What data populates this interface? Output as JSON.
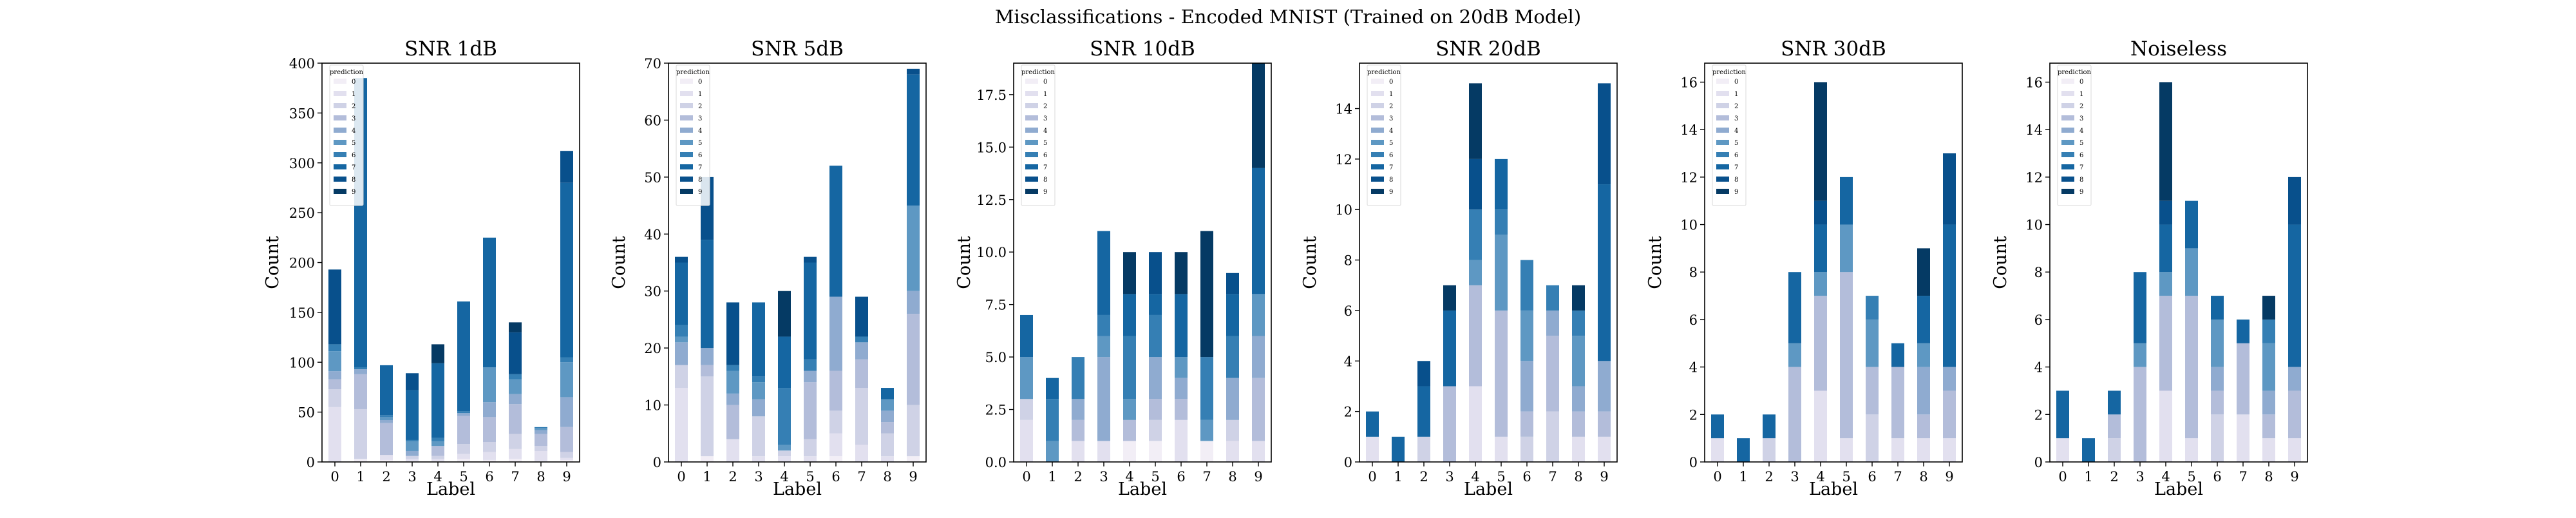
{
  "suptitle": "Misclassifications - Encoded MNIST (Trained on 20dB Model)",
  "legend_title": "prediction",
  "legend_labels": [
    "0",
    "1",
    "2",
    "3",
    "4",
    "5",
    "6",
    "7",
    "8",
    "9"
  ],
  "colors": [
    "#f2eef6",
    "#e2e0ef",
    "#cfd2e6",
    "#b3bdda",
    "#8fabd0",
    "#5e98c3",
    "#357fb4",
    "#1566a2",
    "#08508c",
    "#053a64"
  ],
  "chart_data": [
    {
      "type": "bar",
      "stacked": true,
      "title": "SNR 1dB",
      "xlabel": "Label",
      "ylabel": "Count",
      "categories": [
        "0",
        "1",
        "2",
        "3",
        "4",
        "5",
        "6",
        "7",
        "8",
        "9"
      ],
      "ylim": [
        0,
        400
      ],
      "yticks": [
        "0",
        "50",
        "100",
        "150",
        "200",
        "250",
        "300",
        "350",
        "400"
      ],
      "series": [
        {
          "name": "0",
          "values": [
            0,
            3,
            2,
            1,
            1,
            3,
            2,
            3,
            1,
            2
          ]
        },
        {
          "name": "1",
          "values": [
            55,
            0,
            5,
            2,
            2,
            5,
            8,
            10,
            10,
            2
          ]
        },
        {
          "name": "2",
          "values": [
            18,
            50,
            0,
            3,
            3,
            10,
            10,
            15,
            5,
            6
          ]
        },
        {
          "name": "3",
          "values": [
            10,
            35,
            32,
            0,
            10,
            28,
            25,
            30,
            12,
            25
          ]
        },
        {
          "name": "4",
          "values": [
            8,
            5,
            3,
            5,
            0,
            3,
            15,
            10,
            4,
            30
          ]
        },
        {
          "name": "5",
          "values": [
            20,
            0,
            3,
            10,
            5,
            0,
            35,
            15,
            2,
            35
          ]
        },
        {
          "name": "6",
          "values": [
            7,
            2,
            2,
            1,
            3,
            2,
            0,
            5,
            1,
            5
          ]
        },
        {
          "name": "7",
          "values": [
            0,
            290,
            50,
            50,
            75,
            110,
            130,
            0,
            0,
            175
          ]
        },
        {
          "name": "8",
          "values": [
            75,
            0,
            0,
            17,
            0,
            0,
            0,
            42,
            0,
            32
          ]
        },
        {
          "name": "9",
          "values": [
            0,
            0,
            0,
            0,
            19,
            0,
            0,
            10,
            0,
            0
          ]
        }
      ]
    },
    {
      "type": "bar",
      "stacked": true,
      "title": "SNR 5dB",
      "xlabel": "Label",
      "ylabel": "Count",
      "categories": [
        "0",
        "1",
        "2",
        "3",
        "4",
        "5",
        "6",
        "7",
        "8",
        "9"
      ],
      "ylim": [
        0,
        70
      ],
      "yticks": [
        "0",
        "10",
        "20",
        "30",
        "40",
        "50",
        "60",
        "70"
      ],
      "series": [
        {
          "name": "0",
          "values": [
            0,
            1,
            0,
            0,
            0,
            0,
            1,
            0,
            0,
            1
          ]
        },
        {
          "name": "1",
          "values": [
            13,
            0,
            4,
            1,
            1,
            1,
            4,
            3,
            1,
            0
          ]
        },
        {
          "name": "2",
          "values": [
            4,
            14,
            0,
            7,
            1,
            3,
            4,
            10,
            4,
            9
          ]
        },
        {
          "name": "3",
          "values": [
            0,
            2,
            6,
            0,
            0,
            10,
            7,
            5,
            2,
            16
          ]
        },
        {
          "name": "4",
          "values": [
            4,
            3,
            2,
            3,
            0,
            2,
            13,
            3,
            2,
            4
          ]
        },
        {
          "name": "5",
          "values": [
            1,
            0,
            4,
            3,
            1,
            0,
            0,
            0,
            2,
            15
          ]
        },
        {
          "name": "6",
          "values": [
            2,
            0,
            1,
            1,
            10,
            2,
            0,
            1,
            0,
            0
          ]
        },
        {
          "name": "7",
          "values": [
            11,
            19,
            0,
            13,
            9,
            17,
            23,
            0,
            2,
            23
          ]
        },
        {
          "name": "8",
          "values": [
            1,
            11,
            11,
            0,
            0,
            1,
            0,
            7,
            0,
            1
          ]
        },
        {
          "name": "9",
          "values": [
            0,
            0,
            0,
            0,
            8,
            0,
            0,
            0,
            0,
            0
          ]
        }
      ]
    },
    {
      "type": "bar",
      "stacked": true,
      "title": "SNR 10dB",
      "xlabel": "Label",
      "ylabel": "Count",
      "categories": [
        "0",
        "1",
        "2",
        "3",
        "4",
        "5",
        "6",
        "7",
        "8",
        "9"
      ],
      "ylim": [
        0,
        19
      ],
      "yticks": [
        "0.0",
        "2.5",
        "5.0",
        "7.5",
        "10.0",
        "12.5",
        "15.0",
        "17.5"
      ],
      "ytick_values": [
        0,
        2.5,
        5,
        7.5,
        10,
        12.5,
        15,
        17.5
      ],
      "series": [
        {
          "name": "0",
          "values": [
            0,
            0,
            0,
            0,
            1,
            1,
            0,
            1,
            0,
            0
          ]
        },
        {
          "name": "1",
          "values": [
            2,
            0,
            1,
            1,
            0,
            0,
            2,
            0,
            1,
            1
          ]
        },
        {
          "name": "2",
          "values": [
            1,
            0,
            0,
            0,
            0,
            1,
            0,
            0,
            1,
            0
          ]
        },
        {
          "name": "3",
          "values": [
            0,
            0,
            1,
            0,
            1,
            1,
            1,
            0,
            0,
            3
          ]
        },
        {
          "name": "4",
          "values": [
            0,
            0,
            1,
            4,
            0,
            2,
            1,
            0,
            2,
            2
          ]
        },
        {
          "name": "5",
          "values": [
            2,
            1,
            0,
            1,
            1,
            0,
            1,
            1,
            0,
            2
          ]
        },
        {
          "name": "6",
          "values": [
            0,
            2,
            2,
            1,
            3,
            2,
            0,
            3,
            2,
            0
          ]
        },
        {
          "name": "7",
          "values": [
            2,
            1,
            0,
            4,
            2,
            1,
            3,
            0,
            2,
            6
          ]
        },
        {
          "name": "8",
          "values": [
            0,
            0,
            0,
            0,
            0,
            2,
            0,
            0,
            1,
            0
          ]
        },
        {
          "name": "9",
          "values": [
            0,
            0,
            0,
            0,
            2,
            0,
            2,
            6,
            0,
            5
          ]
        }
      ]
    },
    {
      "type": "bar",
      "stacked": true,
      "title": "SNR 20dB",
      "xlabel": "Label",
      "ylabel": "Count",
      "categories": [
        "0",
        "1",
        "2",
        "3",
        "4",
        "5",
        "6",
        "7",
        "8",
        "9"
      ],
      "ylim": [
        0,
        15.8
      ],
      "yticks": [
        "0",
        "2",
        "4",
        "6",
        "8",
        "10",
        "12",
        "14"
      ],
      "series": [
        {
          "name": "0",
          "values": [
            0,
            0,
            0,
            0,
            0,
            0,
            0,
            0,
            0,
            0
          ]
        },
        {
          "name": "1",
          "values": [
            1,
            0,
            0,
            0,
            3,
            1,
            0,
            0,
            1,
            1
          ]
        },
        {
          "name": "2",
          "values": [
            0,
            0,
            1,
            0,
            0,
            0,
            1,
            2,
            0,
            0
          ]
        },
        {
          "name": "3",
          "values": [
            0,
            0,
            0,
            3,
            4,
            5,
            1,
            3,
            1,
            1
          ]
        },
        {
          "name": "4",
          "values": [
            0,
            0,
            0,
            0,
            0,
            0,
            2,
            1,
            1,
            2
          ]
        },
        {
          "name": "5",
          "values": [
            0,
            0,
            0,
            0,
            1,
            3,
            2,
            0,
            2,
            0
          ]
        },
        {
          "name": "6",
          "values": [
            0,
            0,
            0,
            0,
            2,
            1,
            2,
            1,
            1,
            0
          ]
        },
        {
          "name": "7",
          "values": [
            1,
            1,
            2,
            3,
            0,
            2,
            0,
            0,
            0,
            7
          ]
        },
        {
          "name": "8",
          "values": [
            0,
            0,
            1,
            0,
            2,
            0,
            0,
            0,
            0,
            4
          ]
        },
        {
          "name": "9",
          "values": [
            0,
            0,
            0,
            1,
            3,
            0,
            0,
            0,
            1,
            0
          ]
        }
      ]
    },
    {
      "type": "bar",
      "stacked": true,
      "title": "SNR 30dB",
      "xlabel": "Label",
      "ylabel": "Count",
      "categories": [
        "0",
        "1",
        "2",
        "3",
        "4",
        "5",
        "6",
        "7",
        "8",
        "9"
      ],
      "ylim": [
        0,
        16.8
      ],
      "yticks": [
        "0",
        "2",
        "4",
        "6",
        "8",
        "10",
        "12",
        "14",
        "16"
      ],
      "series": [
        {
          "name": "0",
          "values": [
            0,
            0,
            0,
            0,
            0,
            0,
            0,
            0,
            0,
            0
          ]
        },
        {
          "name": "1",
          "values": [
            1,
            0,
            0,
            0,
            3,
            1,
            0,
            1,
            1,
            1
          ]
        },
        {
          "name": "2",
          "values": [
            0,
            0,
            1,
            0,
            0,
            0,
            2,
            0,
            0,
            0
          ]
        },
        {
          "name": "3",
          "values": [
            0,
            0,
            0,
            4,
            4,
            7,
            2,
            3,
            1,
            2
          ]
        },
        {
          "name": "4",
          "values": [
            0,
            0,
            0,
            0,
            0,
            0,
            0,
            0,
            2,
            1
          ]
        },
        {
          "name": "5",
          "values": [
            0,
            0,
            0,
            1,
            1,
            2,
            2,
            0,
            1,
            0
          ]
        },
        {
          "name": "6",
          "values": [
            0,
            0,
            0,
            0,
            0,
            0,
            1,
            0,
            0,
            0
          ]
        },
        {
          "name": "7",
          "values": [
            1,
            1,
            1,
            3,
            2,
            2,
            0,
            1,
            2,
            6
          ]
        },
        {
          "name": "8",
          "values": [
            0,
            0,
            0,
            0,
            1,
            0,
            0,
            0,
            0,
            3
          ]
        },
        {
          "name": "9",
          "values": [
            0,
            0,
            0,
            0,
            5,
            0,
            0,
            0,
            2,
            0
          ]
        }
      ]
    },
    {
      "type": "bar",
      "stacked": true,
      "title": "Noiseless",
      "xlabel": "Label",
      "ylabel": "Count",
      "categories": [
        "0",
        "1",
        "2",
        "3",
        "4",
        "5",
        "6",
        "7",
        "8",
        "9"
      ],
      "ylim": [
        0,
        16.8
      ],
      "yticks": [
        "0",
        "2",
        "4",
        "6",
        "8",
        "10",
        "12",
        "14",
        "16"
      ],
      "series": [
        {
          "name": "0",
          "values": [
            0,
            0,
            0,
            0,
            0,
            0,
            0,
            0,
            0,
            0
          ]
        },
        {
          "name": "1",
          "values": [
            1,
            0,
            0,
            0,
            3,
            1,
            0,
            2,
            1,
            1
          ]
        },
        {
          "name": "2",
          "values": [
            0,
            0,
            1,
            0,
            0,
            0,
            2,
            0,
            0,
            0
          ]
        },
        {
          "name": "3",
          "values": [
            0,
            0,
            1,
            4,
            4,
            6,
            1,
            3,
            1,
            2
          ]
        },
        {
          "name": "4",
          "values": [
            0,
            0,
            0,
            0,
            0,
            0,
            1,
            0,
            1,
            1
          ]
        },
        {
          "name": "5",
          "values": [
            0,
            0,
            0,
            1,
            1,
            2,
            2,
            0,
            2,
            0
          ]
        },
        {
          "name": "6",
          "values": [
            0,
            0,
            0,
            0,
            0,
            0,
            0,
            0,
            1,
            0
          ]
        },
        {
          "name": "7",
          "values": [
            2,
            1,
            1,
            3,
            2,
            2,
            1,
            1,
            0,
            6
          ]
        },
        {
          "name": "8",
          "values": [
            0,
            0,
            0,
            0,
            1,
            0,
            0,
            0,
            0,
            2
          ]
        },
        {
          "name": "9",
          "values": [
            0,
            0,
            0,
            0,
            5,
            0,
            0,
            0,
            1,
            0
          ]
        }
      ]
    }
  ]
}
